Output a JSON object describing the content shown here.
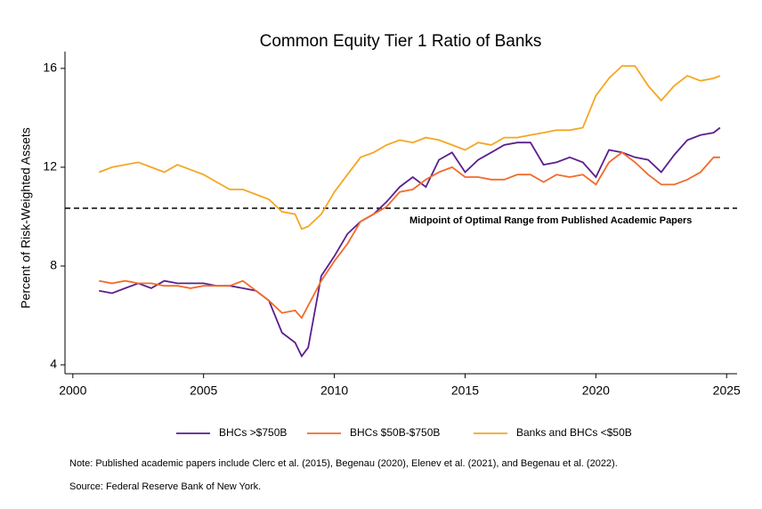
{
  "chart_data": {
    "type": "line",
    "title": "Common Equity Tier 1 Ratio of Banks",
    "ylabel": "Percent of Risk-Weighted Assets",
    "x": [
      2001,
      2001.5,
      2002,
      2002.5,
      2003,
      2003.5,
      2004,
      2004.5,
      2005,
      2005.5,
      2006,
      2006.5,
      2007,
      2007.5,
      2008,
      2008.5,
      2008.75,
      2009,
      2009.5,
      2010,
      2010.5,
      2011,
      2011.5,
      2012,
      2012.5,
      2013,
      2013.5,
      2014,
      2014.5,
      2015,
      2015.5,
      2016,
      2016.5,
      2017,
      2017.5,
      2018,
      2018.5,
      2019,
      2019.5,
      2020,
      2020.5,
      2021,
      2021.5,
      2022,
      2022.5,
      2023,
      2023.5,
      2024,
      2024.5,
      2024.75
    ],
    "series": [
      {
        "name": "BHCs >$750B",
        "color": "#5b1f8c",
        "values": [
          7.0,
          6.9,
          7.1,
          7.3,
          7.1,
          7.4,
          7.3,
          7.3,
          7.3,
          7.2,
          7.2,
          7.1,
          7.0,
          6.6,
          5.3,
          4.9,
          4.35,
          4.7,
          7.6,
          8.4,
          9.3,
          9.8,
          10.1,
          10.6,
          11.2,
          11.6,
          11.2,
          12.3,
          12.6,
          11.8,
          12.3,
          12.6,
          12.9,
          13.0,
          13.0,
          12.1,
          12.2,
          12.4,
          12.2,
          11.6,
          12.7,
          12.6,
          12.4,
          12.3,
          11.8,
          12.5,
          13.1,
          13.3,
          13.4,
          13.6
        ]
      },
      {
        "name": "BHCs $50B-$750B",
        "color": "#f26b2a",
        "values": [
          7.4,
          7.3,
          7.4,
          7.3,
          7.3,
          7.2,
          7.2,
          7.1,
          7.2,
          7.2,
          7.2,
          7.4,
          7.0,
          6.6,
          6.1,
          6.2,
          5.9,
          6.4,
          7.4,
          8.2,
          8.9,
          9.8,
          10.1,
          10.4,
          11.0,
          11.1,
          11.5,
          11.8,
          12.0,
          11.6,
          11.6,
          11.5,
          11.5,
          11.7,
          11.7,
          11.4,
          11.7,
          11.6,
          11.7,
          11.3,
          12.2,
          12.6,
          12.2,
          11.7,
          11.3,
          11.3,
          11.5,
          11.8,
          12.4,
          12.4
        ]
      },
      {
        "name": "Banks and BHCs <$50B",
        "color": "#f5a623",
        "values": [
          11.8,
          12.0,
          12.1,
          12.2,
          12.0,
          11.8,
          12.1,
          11.9,
          11.7,
          11.4,
          11.1,
          11.1,
          10.9,
          10.7,
          10.2,
          10.1,
          9.5,
          9.6,
          10.1,
          11.0,
          11.7,
          12.4,
          12.6,
          12.9,
          13.1,
          13.0,
          13.2,
          13.1,
          12.9,
          12.7,
          13.0,
          12.9,
          13.2,
          13.2,
          13.3,
          13.4,
          13.5,
          13.5,
          13.6,
          14.9,
          15.6,
          16.1,
          16.1,
          15.3,
          14.7,
          15.3,
          15.7,
          15.5,
          15.6,
          15.7
        ]
      }
    ],
    "hline": {
      "value": 10.34,
      "label": "Midpoint of Optimal Range from Published Academic Papers"
    },
    "xlim": [
      1999.7,
      2025.4
    ],
    "xticks": [
      2000,
      2005,
      2010,
      2015,
      2020,
      2025
    ],
    "ylim": [
      3.64,
      16.68
    ],
    "yticks": [
      4,
      8,
      12,
      16
    ],
    "legend": "bottom",
    "notes": [
      "Note: Published academic papers include Clerc et al. (2015), Begenau (2020), Elenev et al. (2021), and Begenau et al. (2022).",
      "Source: Federal Reserve Bank of New York."
    ]
  }
}
